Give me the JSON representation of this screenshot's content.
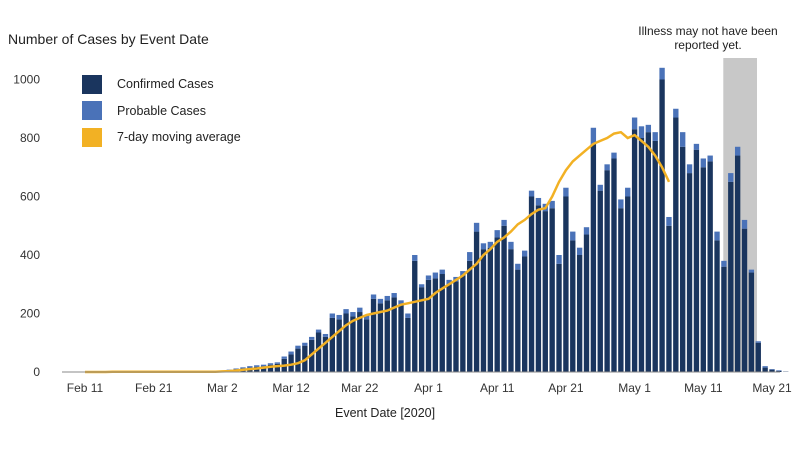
{
  "chart_data": {
    "type": "bar",
    "title": "Number of Cases by Event Date",
    "xlabel": "Event Date [2020]",
    "ylabel": "",
    "ylim": [
      0,
      1050
    ],
    "yticks": [
      0,
      200,
      400,
      600,
      800,
      1000
    ],
    "xtick_labels": [
      "Feb 11",
      "Feb 21",
      "Mar 2",
      "Mar 12",
      "Mar 22",
      "Apr 1",
      "Apr 11",
      "Apr 21",
      "May 1",
      "May 11",
      "May 21"
    ],
    "x_start_label": "Feb 11",
    "x_end_label": "May 21",
    "shaded_start_label": "May 11",
    "annotation": "Illness may not have been reported yet.",
    "legend_position": "top-left",
    "series": [
      {
        "name": "Confirmed Cases",
        "color": "#1a355e",
        "x_start": "Feb 15",
        "values": [
          1,
          1,
          1,
          1,
          1,
          1,
          1,
          1,
          1,
          1,
          1,
          1,
          1,
          1,
          1,
          2,
          2,
          5,
          8,
          12,
          15,
          18,
          20,
          25,
          28,
          45,
          60,
          80,
          90,
          110,
          135,
          120,
          185,
          180,
          200,
          190,
          205,
          180,
          250,
          235,
          245,
          255,
          230,
          185,
          380,
          290,
          315,
          320,
          335,
          300,
          310,
          330,
          380,
          480,
          420,
          425,
          460,
          500,
          420,
          350,
          395,
          600,
          570,
          550,
          560,
          370,
          600,
          450,
          400,
          470,
          780,
          620,
          690,
          730,
          560,
          600,
          830,
          800,
          820,
          790,
          1000,
          500,
          870,
          770,
          680,
          760,
          700,
          720,
          450,
          360,
          650,
          740,
          490,
          340,
          100,
          15,
          8,
          4,
          1
        ],
        "gaps": [
          8,
          9,
          10,
          11,
          12,
          13,
          14
        ]
      },
      {
        "name": "Probable Cases",
        "color": "#4a72b8",
        "x_start": "Feb 15",
        "values": [
          0,
          0,
          0,
          0,
          0,
          0,
          0,
          0,
          0,
          0,
          0,
          0,
          0,
          0,
          0,
          1,
          1,
          3,
          4,
          4,
          5,
          5,
          5,
          5,
          5,
          8,
          10,
          10,
          10,
          10,
          10,
          10,
          15,
          15,
          15,
          15,
          15,
          15,
          15,
          15,
          15,
          15,
          15,
          15,
          20,
          10,
          15,
          20,
          15,
          15,
          15,
          15,
          30,
          30,
          20,
          20,
          25,
          20,
          25,
          20,
          20,
          20,
          25,
          25,
          25,
          30,
          30,
          30,
          25,
          25,
          55,
          20,
          20,
          20,
          30,
          30,
          40,
          40,
          25,
          30,
          40,
          30,
          30,
          50,
          30,
          20,
          30,
          20,
          30,
          20,
          30,
          30,
          30,
          10,
          5,
          5,
          2,
          2,
          0
        ]
      },
      {
        "name": "7-day moving average",
        "color": "#f2b124",
        "type": "line",
        "x_start": "Feb 11",
        "values": [
          0,
          0,
          0,
          0,
          1,
          1,
          1,
          1,
          1,
          1,
          1,
          1,
          1,
          1,
          1,
          1,
          1,
          1,
          1,
          1,
          2,
          3,
          5,
          8,
          10,
          12,
          15,
          18,
          20,
          22,
          25,
          30,
          40,
          60,
          80,
          100,
          120,
          140,
          160,
          175,
          185,
          195,
          200,
          205,
          210,
          220,
          230,
          235,
          240,
          245,
          250,
          270,
          285,
          300,
          315,
          330,
          350,
          370,
          400,
          420,
          445,
          460,
          480,
          505,
          520,
          540,
          555,
          560,
          600,
          650,
          690,
          720,
          740,
          760,
          780,
          790,
          800,
          815,
          820,
          800,
          810,
          790,
          770,
          740,
          700,
          650
        ]
      }
    ]
  }
}
